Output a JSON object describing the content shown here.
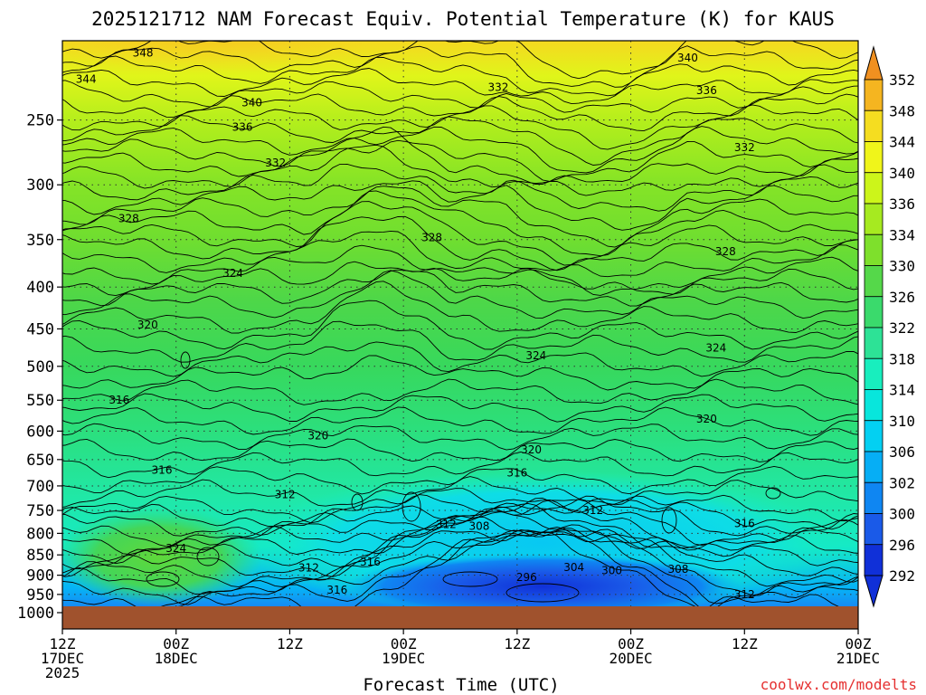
{
  "chart_data": {
    "type": "heatmap",
    "title": "2025121712 NAM Forecast Equiv. Potential Temperature (K) for KAUS",
    "xlabel": "Forecast Time (UTC)",
    "ylabel": "",
    "y_scale": "log",
    "y_inverted": true,
    "ylim": [
      1000,
      200
    ],
    "y_ticks": [
      250,
      300,
      350,
      400,
      450,
      500,
      550,
      600,
      650,
      700,
      750,
      800,
      850,
      900,
      950,
      1000
    ],
    "x_ticks": [
      {
        "hours": 0,
        "line1": "12Z",
        "line2": "17DEC",
        "line3": "2025"
      },
      {
        "hours": 12,
        "line1": "00Z",
        "line2": "18DEC",
        "line3": ""
      },
      {
        "hours": 24,
        "line1": "12Z",
        "line2": "",
        "line3": ""
      },
      {
        "hours": 36,
        "line1": "00Z",
        "line2": "19DEC",
        "line3": ""
      },
      {
        "hours": 48,
        "line1": "12Z",
        "line2": "",
        "line3": ""
      },
      {
        "hours": 60,
        "line1": "00Z",
        "line2": "20DEC",
        "line3": ""
      },
      {
        "hours": 72,
        "line1": "12Z",
        "line2": "",
        "line3": ""
      },
      {
        "hours": 84,
        "line1": "00Z",
        "line2": "21DEC",
        "line3": ""
      }
    ],
    "xlim": [
      0,
      84
    ],
    "grid": true,
    "colorbar": {
      "levels": [
        292,
        296,
        300,
        302,
        306,
        310,
        314,
        318,
        322,
        326,
        330,
        334,
        336,
        340,
        344,
        348,
        352
      ],
      "colors": [
        "#1030d8",
        "#1a5ae8",
        "#0f86f2",
        "#06aef5",
        "#03d0f2",
        "#08e6dc",
        "#18eebe",
        "#2de296",
        "#3ada6c",
        "#55d84a",
        "#7ee02c",
        "#a6ea20",
        "#ccf51a",
        "#f0f51a",
        "#f5dd20",
        "#f5b520",
        "#f09020"
      ],
      "extend": "both"
    },
    "contour_labels": [
      {
        "value": "348",
        "hours": 8.5,
        "p": 207
      },
      {
        "value": "344",
        "hours": 2.5,
        "p": 223
      },
      {
        "value": "340",
        "hours": 20,
        "p": 238
      },
      {
        "value": "336",
        "hours": 19,
        "p": 255
      },
      {
        "value": "332",
        "hours": 22.5,
        "p": 282
      },
      {
        "value": "328",
        "hours": 7,
        "p": 330
      },
      {
        "value": "324",
        "hours": 18,
        "p": 385
      },
      {
        "value": "320",
        "hours": 9,
        "p": 445
      },
      {
        "value": "316",
        "hours": 6,
        "p": 550
      },
      {
        "value": "320",
        "hours": 27,
        "p": 608
      },
      {
        "value": "316",
        "hours": 10.5,
        "p": 670
      },
      {
        "value": "312",
        "hours": 23.5,
        "p": 717
      },
      {
        "value": "324",
        "hours": 12,
        "p": 835
      },
      {
        "value": "312",
        "hours": 26,
        "p": 882
      },
      {
        "value": "316",
        "hours": 29,
        "p": 938
      },
      {
        "value": "316",
        "hours": 32.5,
        "p": 867
      },
      {
        "value": "332",
        "hours": 46,
        "p": 228
      },
      {
        "value": "328",
        "hours": 39,
        "p": 348
      },
      {
        "value": "324",
        "hours": 50,
        "p": 485
      },
      {
        "value": "320",
        "hours": 49.5,
        "p": 632
      },
      {
        "value": "316",
        "hours": 48,
        "p": 675
      },
      {
        "value": "312",
        "hours": 40.5,
        "p": 780
      },
      {
        "value": "308",
        "hours": 44,
        "p": 784
      },
      {
        "value": "312",
        "hours": 56,
        "p": 750
      },
      {
        "value": "296",
        "hours": 49,
        "p": 905
      },
      {
        "value": "304",
        "hours": 54,
        "p": 880
      },
      {
        "value": "300",
        "hours": 58,
        "p": 888
      },
      {
        "value": "308",
        "hours": 65,
        "p": 885
      },
      {
        "value": "312",
        "hours": 72,
        "p": 950
      },
      {
        "value": "316",
        "hours": 72,
        "p": 778
      },
      {
        "value": "320",
        "hours": 68,
        "p": 580
      },
      {
        "value": "324",
        "hours": 69,
        "p": 475
      },
      {
        "value": "328",
        "hours": 70,
        "p": 362
      },
      {
        "value": "332",
        "hours": 72,
        "p": 270
      },
      {
        "value": "336",
        "hours": 68,
        "p": 230
      },
      {
        "value": "340",
        "hours": 66,
        "p": 210
      }
    ]
  },
  "credit": "coolwx.com/modelts"
}
